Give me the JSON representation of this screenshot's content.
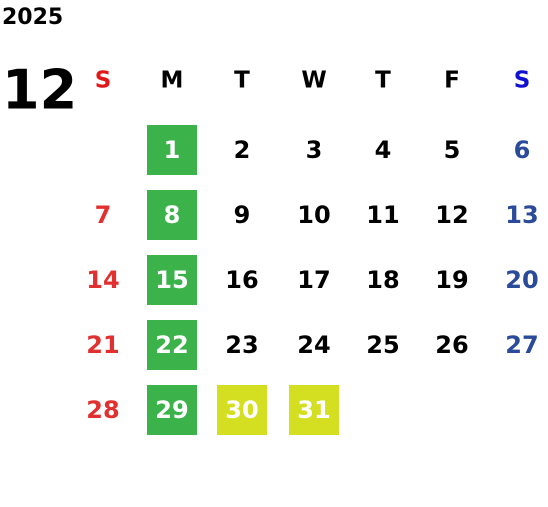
{
  "calendar": {
    "year": "2025",
    "month": "12",
    "weekdays": [
      "S",
      "M",
      "T",
      "W",
      "T",
      "F",
      "S"
    ],
    "header_colors": [
      "#e01818",
      "#000000",
      "#000000",
      "#000000",
      "#000000",
      "#000000",
      "#1010d0"
    ],
    "day_colors": [
      "#e03030",
      "#000000",
      "#000000",
      "#000000",
      "#000000",
      "#000000",
      "#2a4a9a"
    ],
    "weeks": [
      [
        null,
        {
          "day": "1",
          "fill": "#3bb34a"
        },
        {
          "day": "2"
        },
        {
          "day": "3"
        },
        {
          "day": "4"
        },
        {
          "day": "5"
        },
        {
          "day": "6"
        }
      ],
      [
        {
          "day": "7"
        },
        {
          "day": "8",
          "fill": "#3bb34a"
        },
        {
          "day": "9"
        },
        {
          "day": "10"
        },
        {
          "day": "11"
        },
        {
          "day": "12"
        },
        {
          "day": "13"
        }
      ],
      [
        {
          "day": "14"
        },
        {
          "day": "15",
          "fill": "#3bb34a"
        },
        {
          "day": "16"
        },
        {
          "day": "17"
        },
        {
          "day": "18"
        },
        {
          "day": "19"
        },
        {
          "day": "20"
        }
      ],
      [
        {
          "day": "21"
        },
        {
          "day": "22",
          "fill": "#3bb34a"
        },
        {
          "day": "23"
        },
        {
          "day": "24"
        },
        {
          "day": "25"
        },
        {
          "day": "26"
        },
        {
          "day": "27"
        }
      ],
      [
        {
          "day": "28"
        },
        {
          "day": "29",
          "fill": "#3bb34a"
        },
        {
          "day": "30",
          "fill": "#d4df22"
        },
        {
          "day": "31",
          "fill": "#d4df22"
        },
        null,
        null,
        null
      ]
    ]
  }
}
